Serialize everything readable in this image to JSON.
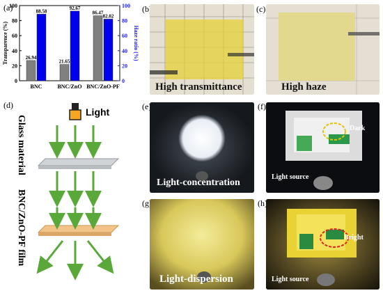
{
  "panels": {
    "a": "(a)",
    "b": "(b)",
    "c": "(c)",
    "d": "(d)",
    "e": "(e)",
    "f": "(f)",
    "g": "(g)",
    "h": "(h)"
  },
  "chart_data": {
    "type": "bar",
    "categories": [
      "BNC",
      "BNC/ZnO",
      "BNC/ZnO-PF"
    ],
    "series": [
      {
        "name": "Transparence",
        "values": [
          26.94,
          21.65,
          86.47
        ],
        "color": "#808080"
      },
      {
        "name": "Haze ratio",
        "values": [
          88.58,
          92.67,
          82.02
        ],
        "color": "#0000ee"
      }
    ],
    "value_labels": [
      [
        "26.94",
        "21.65",
        "86.47"
      ],
      [
        "88.58",
        "92.67",
        "82.02"
      ]
    ],
    "ylabel": "Transparence (%)",
    "y2label": "Haze ratio (%)",
    "ylim": [
      0,
      100
    ],
    "yticks": [
      "0",
      "20",
      "40",
      "60",
      "80",
      "100"
    ],
    "y2ticks": [
      "0",
      "20",
      "40",
      "60",
      "80",
      "100"
    ],
    "y2color": "#1a1aff"
  },
  "photos": {
    "b_caption": "High transmittance",
    "c_caption": "High haze",
    "e_caption": "Light-concentration",
    "g_caption": "Light-dispersion",
    "f_dark": "Dark",
    "f_source": "Light source",
    "h_bright": "Bright",
    "h_source": "Light source"
  },
  "diagram": {
    "light": "Light",
    "glass": "Glass material",
    "film": "BNC/ZnO-PF film"
  }
}
